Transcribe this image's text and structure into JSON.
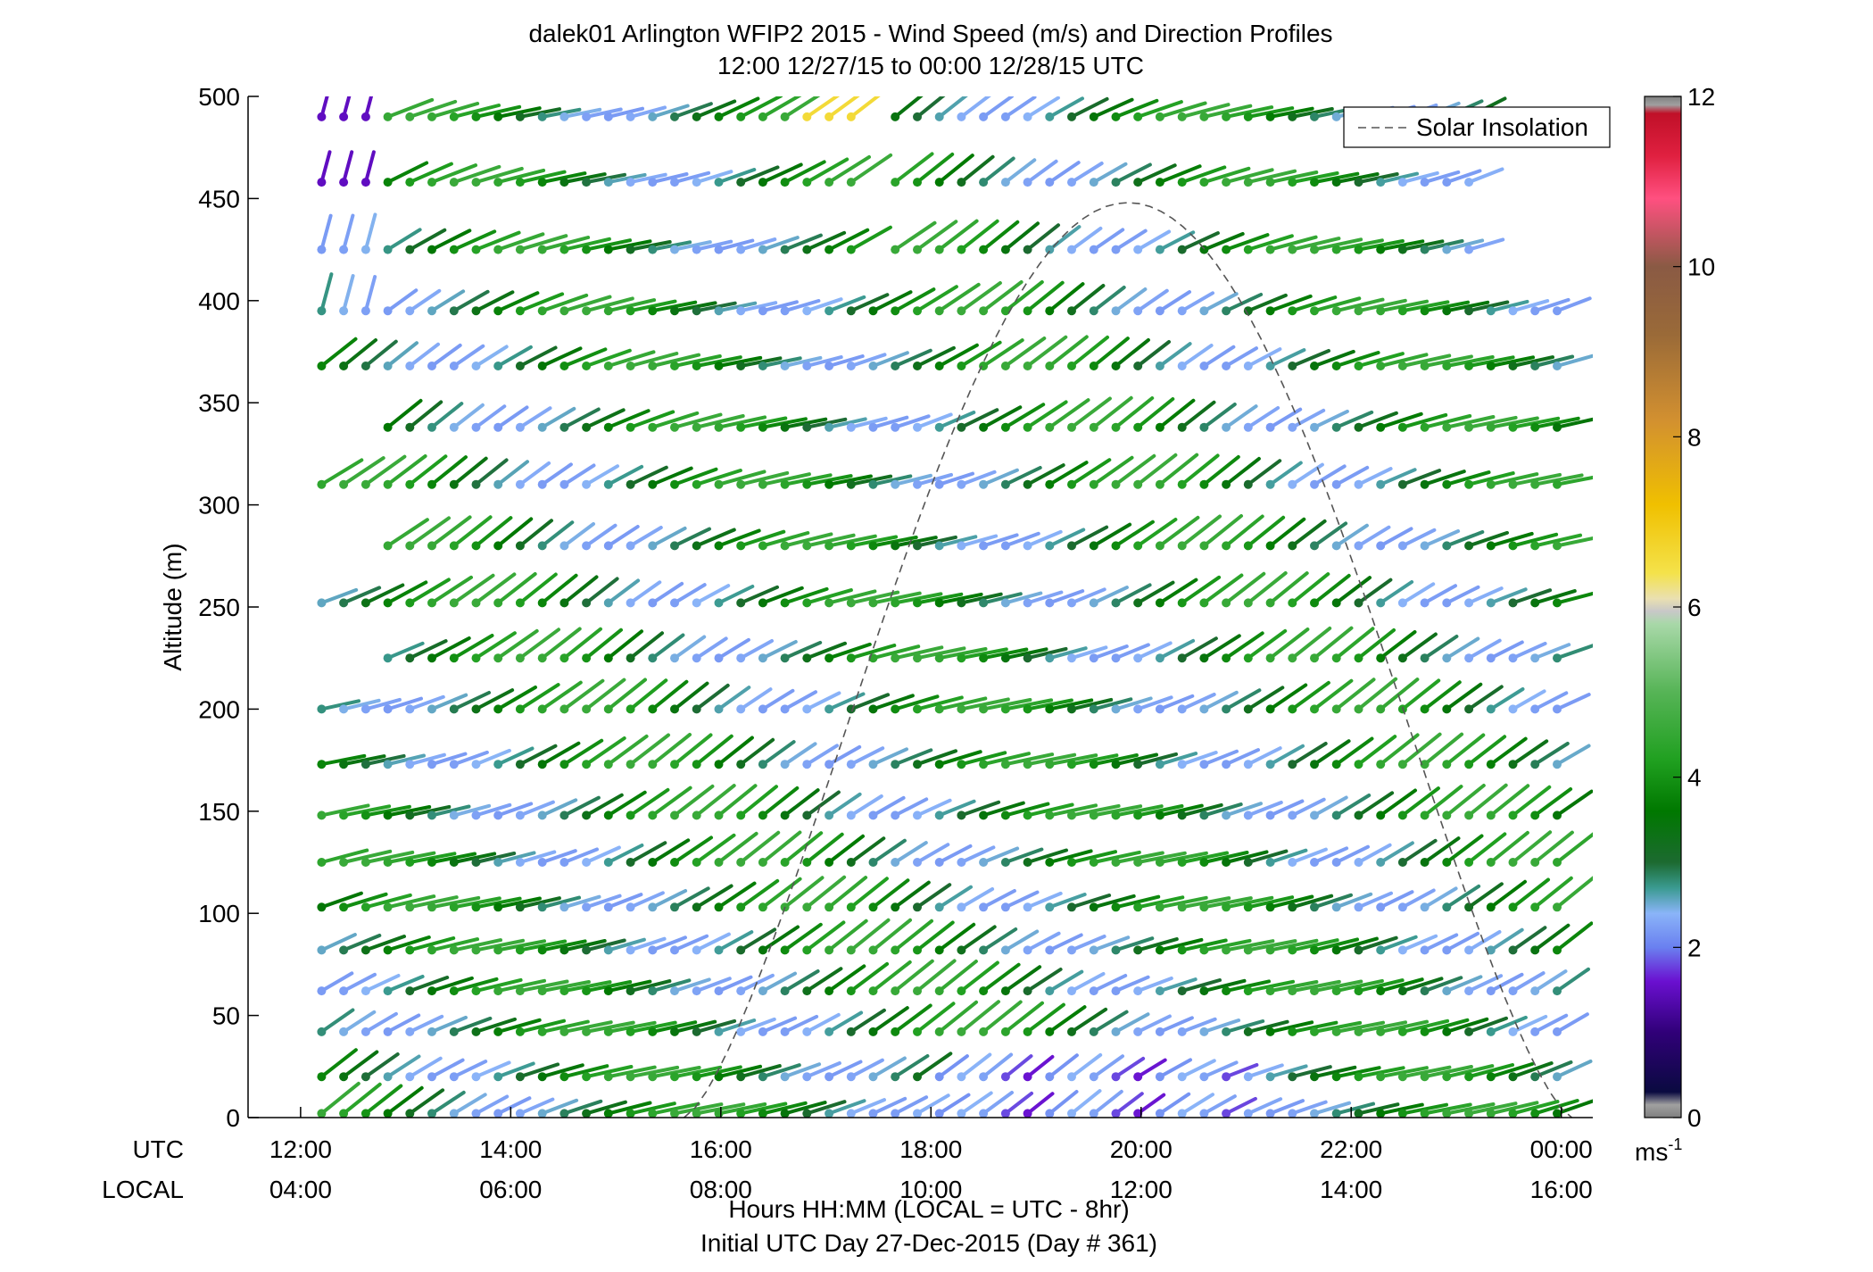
{
  "chart_data": {
    "type": "wind-barb-profile",
    "title": "dalek01 Arlington WFIP2 2015 - Wind Speed (m/s) and Direction Profiles",
    "subtitle": "12:00 12/27/15 to 00:00 12/28/15  UTC",
    "ylabel": "Altitude (m)",
    "ylim": [
      0,
      500
    ],
    "yticks": [
      0,
      50,
      100,
      150,
      200,
      250,
      300,
      350,
      400,
      450,
      500
    ],
    "xlim_hours_utc": [
      11.5,
      24.3
    ],
    "xtick_hours": [
      12,
      14,
      16,
      18,
      20,
      22,
      24
    ],
    "xtick_labels_utc": [
      "12:00",
      "14:00",
      "16:00",
      "18:00",
      "20:00",
      "22:00",
      "00:00"
    ],
    "xtick_labels_local": [
      "04:00",
      "06:00",
      "08:00",
      "10:00",
      "12:00",
      "14:00",
      "16:00"
    ],
    "x_row_label_utc": "UTC",
    "x_row_label_local": "LOCAL",
    "xlabel": "Hours HH:MM  (LOCAL = UTC - 8hr)",
    "footer": "Initial UTC Day 27-Dec-2015 (Day # 361)",
    "legend": {
      "entries": [
        "Solar Insolation"
      ],
      "placement": "top-right"
    },
    "solar_insolation": {
      "start_hour_utc": 15.65,
      "end_hour_utc": 24.1,
      "peak_altitude_m": 448
    },
    "colorbar": {
      "min": 0,
      "max": 12,
      "ticks": [
        0,
        2,
        4,
        6,
        8,
        10,
        12
      ],
      "unit_base": "ms",
      "unit_exp": "-1",
      "stops": [
        {
          "v": 0.0,
          "c": "#7f7f7f"
        },
        {
          "v": 0.15,
          "c": "#a0a0a0"
        },
        {
          "v": 0.3,
          "c": "#0a0a40"
        },
        {
          "v": 1.0,
          "c": "#300078"
        },
        {
          "v": 1.6,
          "c": "#6a10d0"
        },
        {
          "v": 2.0,
          "c": "#6a80f0"
        },
        {
          "v": 2.4,
          "c": "#8ab4f8"
        },
        {
          "v": 2.7,
          "c": "#3a9a90"
        },
        {
          "v": 3.0,
          "c": "#1c6a30"
        },
        {
          "v": 3.6,
          "c": "#007800"
        },
        {
          "v": 4.2,
          "c": "#20a020"
        },
        {
          "v": 5.0,
          "c": "#56b456"
        },
        {
          "v": 5.8,
          "c": "#a8d8a8"
        },
        {
          "v": 5.95,
          "c": "#c8c8c8"
        },
        {
          "v": 6.1,
          "c": "#eae0b0"
        },
        {
          "v": 6.4,
          "c": "#f4e24a"
        },
        {
          "v": 7.2,
          "c": "#f0c000"
        },
        {
          "v": 8.2,
          "c": "#d29030"
        },
        {
          "v": 9.2,
          "c": "#9a6a38"
        },
        {
          "v": 10.0,
          "c": "#8a5a44"
        },
        {
          "v": 10.8,
          "c": "#ff5080"
        },
        {
          "v": 11.3,
          "c": "#e02040"
        },
        {
          "v": 11.8,
          "c": "#c01028"
        },
        {
          "v": 11.9,
          "c": "#a0a0a0"
        },
        {
          "v": 12.0,
          "c": "#7f7f7f"
        }
      ]
    }
  }
}
